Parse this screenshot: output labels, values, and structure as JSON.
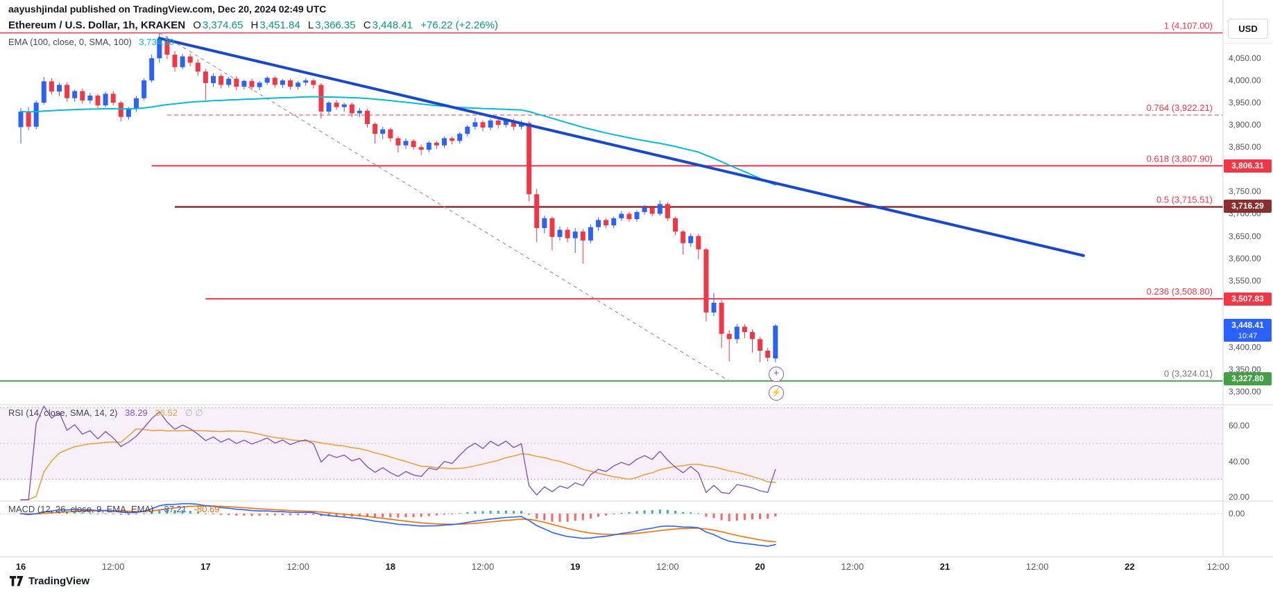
{
  "header": {
    "byline": "aayushjindal published on TradingView.com, Dec 20, 2024 02:49 UTC",
    "title": "Ethereum / U.S. Dollar, 1h, KRAKEN",
    "open_label": "O",
    "open": "3,374.65",
    "high_label": "H",
    "high": "3,451.84",
    "low_label": "L",
    "low": "3,366.35",
    "close_label": "C",
    "close": "3,448.41",
    "change": "+76.22 (+2.26%)",
    "ema_label": "EMA (100, close, 0, SMA, 100)",
    "ema_value": "3,734.30"
  },
  "rsi_panel": {
    "label": "RSI (14, close, SMA, 14, 2)",
    "value1": "38.29",
    "value2": "36.52",
    "empty": "∅ ∅"
  },
  "macd_panel": {
    "label": "MACD (12, 26, close, 9, EMA, EMA)",
    "value1": "-87.21",
    "value2": "-80.69"
  },
  "axis": {
    "currency": "USD",
    "price_ticks": [
      4050,
      4000,
      3950,
      3900,
      3850,
      3750,
      3700,
      3650,
      3600,
      3550,
      3400,
      3350,
      3300
    ],
    "tags": [
      {
        "text": "3,806.31",
        "price": 3806.31,
        "bg": "#F23645"
      },
      {
        "text": "3,716.29",
        "price": 3716.29,
        "bg": "#8B2E2E"
      },
      {
        "text": "3,507.83",
        "price": 3507.83,
        "bg": "#F23645"
      },
      {
        "text": "3,448.41",
        "sub": "10:47",
        "price": 3448.41,
        "bg": "#2962FF"
      },
      {
        "text": "3,327.80",
        "price": 3327.8,
        "bg": "#43A047"
      }
    ],
    "rsi_ticks": [
      60,
      40,
      20
    ],
    "macd_ticks": [
      0
    ],
    "time_ticks": [
      {
        "bar": 0,
        "label": "16",
        "major": true
      },
      {
        "bar": 12,
        "label": "12:00"
      },
      {
        "bar": 24,
        "label": "17",
        "major": true
      },
      {
        "bar": 36,
        "label": "12:00"
      },
      {
        "bar": 48,
        "label": "18",
        "major": true
      },
      {
        "bar": 60,
        "label": "12:00"
      },
      {
        "bar": 72,
        "label": "19",
        "major": true
      },
      {
        "bar": 84,
        "label": "12:00"
      },
      {
        "bar": 96,
        "label": "20",
        "major": true
      },
      {
        "bar": 108,
        "label": "12:00"
      },
      {
        "bar": 120,
        "label": "21",
        "major": true
      },
      {
        "bar": 132,
        "label": "12:00"
      },
      {
        "bar": 144,
        "label": "22",
        "major": true
      },
      {
        "bar": 156,
        "label": "12:00"
      }
    ]
  },
  "chart_buttons": {
    "add_alert": "+",
    "quick_trade": "⚡"
  },
  "footer": {
    "logo_text": "TradingView"
  },
  "colors": {
    "up": "#2962FF",
    "down": "#F23645",
    "ema": "#00BCD4",
    "trendline": "#1848CC",
    "baseline": "#9598A1",
    "teal": "#089981",
    "cyan": "#00BCD4",
    "rsi": "#7E57C2",
    "rsi_ma": "#E8A33D",
    "rsi_band": "#9C27B0",
    "macd": "#2962FF",
    "macd_signal": "#FF6D00",
    "hist_pos": "#26A69A",
    "hist_neg": "#FF5252",
    "separator": "#D6D9DE",
    "label_gray": "#787B86"
  },
  "chart_data": {
    "type": "candlestick",
    "title": "Ethereum / U.S. Dollar, 1h, KRAKEN",
    "x_axis": "time (Dec 16 00:00 – Dec 20 02:00 UTC, hourly bars; axis extends to Dec 22 12:00)",
    "y_axis": "price (USD)",
    "ylim": [
      3300,
      4120
    ],
    "candles": [
      [
        3895,
        3938,
        3858,
        3930
      ],
      [
        3930,
        3940,
        3888,
        3896
      ],
      [
        3896,
        3955,
        3890,
        3950
      ],
      [
        3950,
        4008,
        3945,
        3998
      ],
      [
        3998,
        4005,
        3968,
        3975
      ],
      [
        3975,
        3995,
        3965,
        3990
      ],
      [
        3990,
        3996,
        3952,
        3960
      ],
      [
        3960,
        3980,
        3952,
        3976
      ],
      [
        3976,
        3982,
        3948,
        3955
      ],
      [
        3955,
        3972,
        3948,
        3966
      ],
      [
        3966,
        3970,
        3938,
        3944
      ],
      [
        3944,
        3975,
        3940,
        3970
      ],
      [
        3970,
        3976,
        3944,
        3950
      ],
      [
        3950,
        3954,
        3908,
        3918
      ],
      [
        3918,
        3940,
        3912,
        3936
      ],
      [
        3936,
        3965,
        3930,
        3960
      ],
      [
        3960,
        4005,
        3955,
        4000
      ],
      [
        4000,
        4058,
        3995,
        4050
      ],
      [
        4050,
        4107,
        4040,
        4094
      ],
      [
        4094,
        4100,
        4048,
        4058
      ],
      [
        4058,
        4066,
        4020,
        4030
      ],
      [
        4030,
        4060,
        4025,
        4054
      ],
      [
        4054,
        4060,
        4032,
        4040
      ],
      [
        4040,
        4048,
        4010,
        4020
      ],
      [
        4020,
        4026,
        3956,
        3994
      ],
      [
        3994,
        4016,
        3986,
        4010
      ],
      [
        4010,
        4014,
        3982,
        3990
      ],
      [
        3990,
        4008,
        3984,
        4004
      ],
      [
        4004,
        4010,
        3978,
        3986
      ],
      [
        3986,
        4002,
        3980,
        3999
      ],
      [
        3999,
        4004,
        3978,
        3985
      ],
      [
        3985,
        3999,
        3978,
        3995
      ],
      [
        3995,
        4010,
        3990,
        4006
      ],
      [
        4006,
        4010,
        3984,
        3990
      ],
      [
        3990,
        4003,
        3983,
        4000
      ],
      [
        4000,
        4004,
        3980,
        3986
      ],
      [
        3986,
        3999,
        3980,
        3995
      ],
      [
        3995,
        4005,
        3988,
        4000
      ],
      [
        4000,
        4004,
        3982,
        3990
      ],
      [
        3990,
        3994,
        3914,
        3930
      ],
      [
        3930,
        3954,
        3924,
        3950
      ],
      [
        3950,
        3956,
        3934,
        3940
      ],
      [
        3940,
        3950,
        3930,
        3946
      ],
      [
        3946,
        3950,
        3918,
        3926
      ],
      [
        3926,
        3938,
        3918,
        3932
      ],
      [
        3932,
        3936,
        3894,
        3902
      ],
      [
        3902,
        3906,
        3858,
        3880
      ],
      [
        3880,
        3896,
        3868,
        3890
      ],
      [
        3890,
        3894,
        3862,
        3870
      ],
      [
        3870,
        3874,
        3838,
        3854
      ],
      [
        3854,
        3870,
        3846,
        3864
      ],
      [
        3864,
        3868,
        3844,
        3850
      ],
      [
        3850,
        3856,
        3832,
        3844
      ],
      [
        3844,
        3864,
        3838,
        3860
      ],
      [
        3860,
        3864,
        3846,
        3854
      ],
      [
        3854,
        3874,
        3848,
        3870
      ],
      [
        3870,
        3874,
        3856,
        3864
      ],
      [
        3864,
        3884,
        3858,
        3880
      ],
      [
        3880,
        3900,
        3874,
        3896
      ],
      [
        3896,
        3916,
        3890,
        3906
      ],
      [
        3906,
        3910,
        3886,
        3894
      ],
      [
        3894,
        3914,
        3888,
        3910
      ],
      [
        3910,
        3914,
        3892,
        3900
      ],
      [
        3900,
        3915,
        3894,
        3910
      ],
      [
        3910,
        3914,
        3888,
        3896
      ],
      [
        3896,
        3910,
        3890,
        3904
      ],
      [
        3904,
        3908,
        3728,
        3744
      ],
      [
        3744,
        3756,
        3636,
        3668
      ],
      [
        3668,
        3696,
        3656,
        3690
      ],
      [
        3690,
        3694,
        3618,
        3648
      ],
      [
        3648,
        3672,
        3640,
        3664
      ],
      [
        3664,
        3670,
        3636,
        3645
      ],
      [
        3645,
        3668,
        3612,
        3660
      ],
      [
        3660,
        3666,
        3588,
        3640
      ],
      [
        3640,
        3676,
        3634,
        3670
      ],
      [
        3670,
        3692,
        3662,
        3686
      ],
      [
        3686,
        3690,
        3668,
        3674
      ],
      [
        3674,
        3694,
        3668,
        3690
      ],
      [
        3690,
        3706,
        3684,
        3700
      ],
      [
        3700,
        3704,
        3682,
        3688
      ],
      [
        3688,
        3708,
        3682,
        3704
      ],
      [
        3704,
        3720,
        3698,
        3714
      ],
      [
        3714,
        3718,
        3694,
        3700
      ],
      [
        3700,
        3730,
        3696,
        3722
      ],
      [
        3722,
        3726,
        3684,
        3690
      ],
      [
        3690,
        3694,
        3652,
        3660
      ],
      [
        3660,
        3664,
        3608,
        3634
      ],
      [
        3634,
        3656,
        3626,
        3650
      ],
      [
        3650,
        3654,
        3598,
        3620
      ],
      [
        3620,
        3624,
        3458,
        3478
      ],
      [
        3478,
        3522,
        3470,
        3500
      ],
      [
        3500,
        3506,
        3398,
        3430
      ],
      [
        3430,
        3438,
        3368,
        3418
      ],
      [
        3418,
        3452,
        3408,
        3446
      ],
      [
        3446,
        3452,
        3420,
        3434
      ],
      [
        3434,
        3440,
        3388,
        3418
      ],
      [
        3418,
        3424,
        3366,
        3392
      ],
      [
        3392,
        3398,
        3368,
        3376
      ],
      [
        3374.65,
        3451.84,
        3366.35,
        3448.41
      ]
    ],
    "fib_levels": [
      {
        "label": "1 (4,107.00)",
        "price": 4107.0,
        "color": "#F23645",
        "dash": false,
        "width": 1.5,
        "start_bar": -3,
        "label_color": "#F23645"
      },
      {
        "label": "0.764 (3,922.21)",
        "price": 3922.21,
        "color": "#F23645",
        "dash": true,
        "width": 1,
        "start_bar": 19,
        "label_color": "#F23645"
      },
      {
        "label": "0.618 (3,807.90)",
        "price": 3807.9,
        "color": "#F23645",
        "dash": false,
        "width": 2,
        "start_bar": 17,
        "label_color": "#F23645"
      },
      {
        "label": "0.5 (3,715.51)",
        "price": 3715.51,
        "color": "#8B2E2E",
        "dash": false,
        "width": 2.5,
        "start_bar": 20,
        "label_color": "#F23645"
      },
      {
        "label": "0.236 (3,508.80)",
        "price": 3508.8,
        "color": "#F23645",
        "dash": false,
        "width": 2,
        "start_bar": 24,
        "label_color": "#F23645"
      },
      {
        "label": "0 (3,324.01)",
        "price": 3324.01,
        "color": "#43A047",
        "dash": false,
        "width": 2,
        "start_bar": -3,
        "label_color": "#787B86"
      }
    ],
    "trendline": {
      "from_bar": 18,
      "from_price": 4095,
      "to_bar": 138,
      "to_price": 3606
    },
    "fib_baseline": {
      "from_bar": 18,
      "from_price": 4107,
      "to_bar": 92,
      "to_price": 3324.01
    },
    "indicators": {
      "ema": {
        "length": 100,
        "last_value": 3734.3
      },
      "rsi": {
        "length": 14,
        "ma_length": 14,
        "last_value": 38.29,
        "ma_last_value": 36.52,
        "bands": [
          70,
          50,
          30
        ]
      },
      "macd": {
        "fast": 12,
        "slow": 26,
        "signal": 9,
        "last_value": -87.21,
        "signal_last_value": -80.69
      }
    }
  }
}
